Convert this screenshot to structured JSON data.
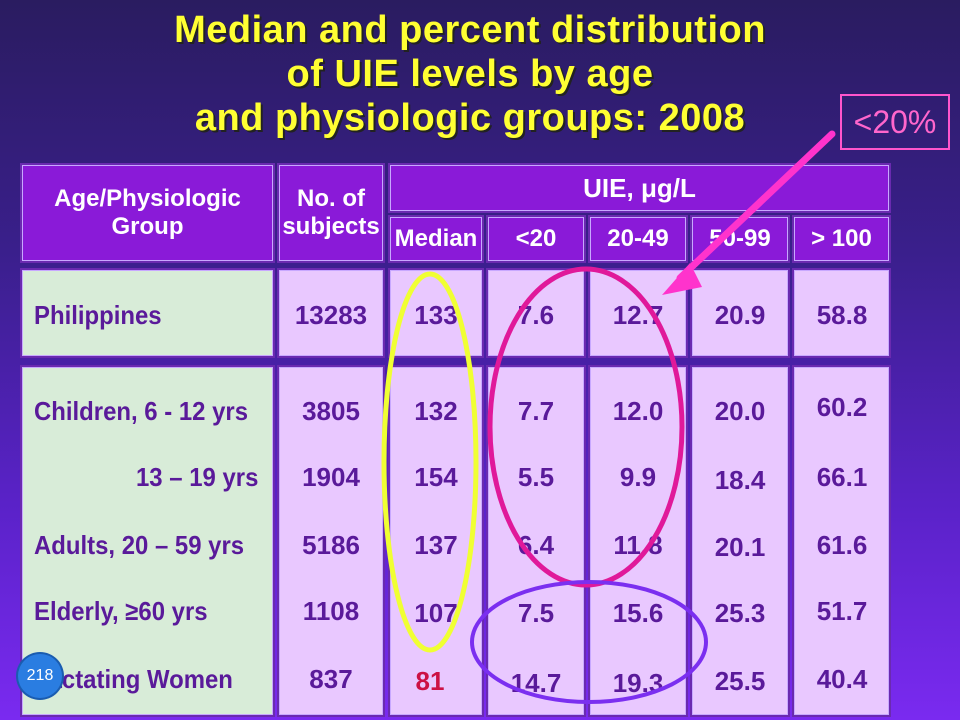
{
  "title_lines": [
    "Median and percent distribution",
    "of UIE levels by age",
    "and physiologic groups: 2008"
  ],
  "callout": "<20%",
  "headers": {
    "group": "Age/Physiologic Group",
    "subjects": "No. of subjects",
    "uie": "UIE, μg/L",
    "median": "Median",
    "lt20": "<20",
    "r20_49": "20-49",
    "r50_99": "50-99",
    "ge100": "> 100"
  },
  "rows": [
    {
      "group": "Philippines",
      "subjects": "13283",
      "median": "133",
      "lt20": "7.6",
      "r20_49": "12.7",
      "r50_99": "20.9",
      "ge100": "58.8"
    },
    {
      "group": "Children, 6 - 12 yrs",
      "subjects": "3805",
      "median": "132",
      "lt20": "7.7",
      "r20_49": "12.0",
      "r50_99": "20.0",
      "ge100": "60.2"
    },
    {
      "group": "13 – 19 yrs",
      "subjects": "1904",
      "median": "154",
      "lt20": "5.5",
      "r20_49": "9.9",
      "r50_99": "18.4",
      "ge100": "66.1"
    },
    {
      "group": "Adults, 20 – 59 yrs",
      "subjects": "5186",
      "median": "137",
      "lt20": "6.4",
      "r20_49": "11.8",
      "r50_99": "20.1",
      "ge100": "61.6"
    },
    {
      "group": "Elderly, ≥60 yrs",
      "subjects": "1108",
      "median": "107",
      "lt20": "7.5",
      "r20_49": "15.6",
      "r50_99": "25.3",
      "ge100": "51.7"
    },
    {
      "group": "Lactating Women",
      "subjects": "837",
      "median": "81",
      "lt20": "14.7",
      "r20_49": "19.3",
      "r50_99": "25.5",
      "ge100": "40.4"
    }
  ],
  "page_number": "218",
  "colors": {
    "title": "#ffff33",
    "header_bg": "#8a1ad8",
    "body_bg": "#e9c8ff",
    "group_bg": "#d8ecd8",
    "median_ellipse": "#f0ff33",
    "pink_ellipse": "#e0199a",
    "purple_ellipse": "#7b2ff0",
    "arrow": "#ff33cc"
  },
  "chart_data": {
    "type": "table",
    "title": "Median and percent distribution of UIE levels by age and physiologic groups: 2008",
    "columns": [
      "Age/Physiologic Group",
      "No. of subjects",
      "Median",
      "<20",
      "20-49",
      "50-99",
      "> 100"
    ],
    "rows": [
      [
        "Philippines",
        13283,
        133,
        7.6,
        12.7,
        20.9,
        58.8
      ],
      [
        "Children, 6 - 12 yrs",
        3805,
        132,
        7.7,
        12.0,
        20.0,
        60.2
      ],
      [
        "13 – 19 yrs",
        1904,
        154,
        5.5,
        9.9,
        18.4,
        66.1
      ],
      [
        "Adults, 20 – 59 yrs",
        5186,
        137,
        6.4,
        11.8,
        20.1,
        61.6
      ],
      [
        "Elderly, ≥60 yrs",
        1108,
        107,
        7.5,
        15.6,
        25.3,
        51.7
      ],
      [
        "Lactating Women",
        837,
        81,
        14.7,
        19.3,
        25.5,
        40.4
      ]
    ]
  }
}
